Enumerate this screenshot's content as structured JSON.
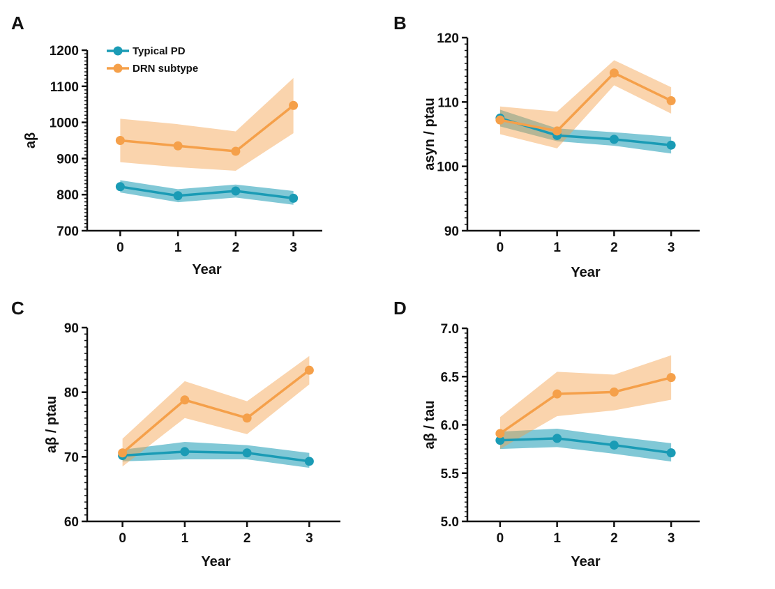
{
  "colors": {
    "typical": "#1a9bb5",
    "drn": "#f5a04a",
    "axis": "#111111"
  },
  "legend": {
    "position": "top-left",
    "entries": [
      "Typical PD",
      "DRN subtype"
    ]
  },
  "chart_data": [
    {
      "panel": "A",
      "type": "line",
      "xlabel": "Year",
      "ylabel": "aβ",
      "x": [
        0,
        1,
        2,
        3
      ],
      "xticks": [
        "0",
        "1",
        "2",
        "3"
      ],
      "ylim": [
        700,
        1200
      ],
      "yticks": [
        "700",
        "800",
        "900",
        "1000",
        "1100",
        "1200"
      ],
      "grid": false,
      "series": [
        {
          "name": "Typical PD",
          "values": [
            822,
            797,
            810,
            790
          ],
          "lower": [
            806,
            779,
            792,
            772
          ],
          "upper": [
            840,
            815,
            828,
            810
          ]
        },
        {
          "name": "DRN subtype",
          "values": [
            950,
            935,
            920,
            1047
          ],
          "lower": [
            890,
            876,
            866,
            970
          ],
          "upper": [
            1010,
            995,
            975,
            1123
          ]
        }
      ]
    },
    {
      "panel": "B",
      "type": "line",
      "xlabel": "Year",
      "ylabel": "asyn / ptau",
      "x": [
        0,
        1,
        2,
        3
      ],
      "xticks": [
        "0",
        "1",
        "2",
        "3"
      ],
      "ylim": [
        90,
        120
      ],
      "yticks": [
        "90",
        "100",
        "110",
        "120"
      ],
      "grid": false,
      "series": [
        {
          "name": "Typical PD",
          "values": [
            107.5,
            104.8,
            104.2,
            103.3
          ],
          "lower": [
            106.2,
            103.9,
            103.2,
            102.0
          ],
          "upper": [
            108.8,
            105.9,
            105.3,
            104.6
          ]
        },
        {
          "name": "DRN subtype",
          "values": [
            107.2,
            105.5,
            114.5,
            110.2
          ],
          "lower": [
            105.0,
            102.8,
            112.6,
            108.2
          ],
          "upper": [
            109.3,
            108.5,
            116.5,
            112.3
          ]
        }
      ]
    },
    {
      "panel": "C",
      "type": "line",
      "xlabel": "Year",
      "ylabel": "aβ / ptau",
      "x": [
        0,
        1,
        2,
        3
      ],
      "xticks": [
        "0",
        "1",
        "2",
        "3"
      ],
      "ylim": [
        60,
        90
      ],
      "yticks": [
        "60",
        "70",
        "80",
        "90"
      ],
      "grid": false,
      "series": [
        {
          "name": "Typical PD",
          "values": [
            70.2,
            70.8,
            70.6,
            69.3
          ],
          "lower": [
            69.3,
            69.6,
            69.6,
            68.3
          ],
          "upper": [
            71.1,
            72.3,
            71.8,
            70.6
          ]
        },
        {
          "name": "DRN subtype",
          "values": [
            70.6,
            78.8,
            76.0,
            83.4
          ],
          "lower": [
            68.5,
            76.0,
            73.5,
            81.2
          ],
          "upper": [
            72.8,
            81.7,
            78.6,
            85.6
          ]
        }
      ]
    },
    {
      "panel": "D",
      "type": "line",
      "xlabel": "Year",
      "ylabel": "aβ / tau",
      "x": [
        0,
        1,
        2,
        3
      ],
      "xticks": [
        "0",
        "1",
        "2",
        "3"
      ],
      "ylim": [
        5.0,
        7.0
      ],
      "yticks": [
        "5.0",
        "5.5",
        "6.0",
        "6.5",
        "7.0"
      ],
      "grid": false,
      "series": [
        {
          "name": "Typical PD",
          "values": [
            5.84,
            5.86,
            5.79,
            5.71
          ],
          "lower": [
            5.75,
            5.77,
            5.7,
            5.62
          ],
          "upper": [
            5.93,
            5.96,
            5.88,
            5.81
          ]
        },
        {
          "name": "DRN subtype",
          "values": [
            5.91,
            6.32,
            6.34,
            6.49
          ],
          "lower": [
            5.75,
            6.09,
            6.15,
            6.26
          ],
          "upper": [
            6.08,
            6.55,
            6.52,
            6.72
          ]
        }
      ]
    }
  ]
}
